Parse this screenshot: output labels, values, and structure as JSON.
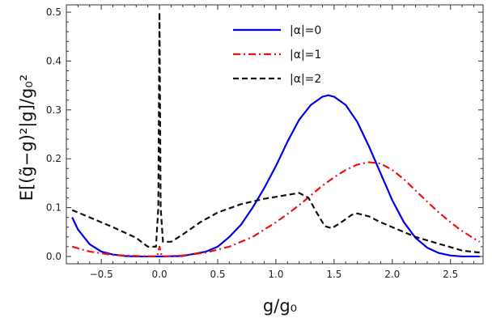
{
  "chart_data": {
    "type": "line",
    "xlabel": "g/g₀",
    "ylabel": "E[(g̃−g)²|g]/g₀²",
    "xlim": [
      -0.8,
      2.78
    ],
    "ylim": [
      -0.015,
      0.515
    ],
    "x_ticks": [
      -0.5,
      0.0,
      0.5,
      1.0,
      1.5,
      2.0,
      2.5
    ],
    "x_tick_labels": [
      "−0.5",
      "0.0",
      "0.5",
      "1.0",
      "1.5",
      "2.0",
      "2.5"
    ],
    "y_ticks": [
      0.0,
      0.1,
      0.2,
      0.3,
      0.4,
      0.5
    ],
    "y_tick_labels": [
      "0.0",
      "0.1",
      "0.2",
      "0.3",
      "0.4",
      "0.5"
    ],
    "grid": false,
    "legend_position": "top-center",
    "series": [
      {
        "name": "|α|=0",
        "color": "#0000ee",
        "dash": "solid",
        "points": [
          [
            -0.75,
            0.08
          ],
          [
            -0.7,
            0.055
          ],
          [
            -0.6,
            0.025
          ],
          [
            -0.5,
            0.01
          ],
          [
            -0.4,
            0.004
          ],
          [
            -0.3,
            0.001
          ],
          [
            -0.2,
            0.0
          ],
          [
            0.0,
            0.0
          ],
          [
            0.2,
            0.001
          ],
          [
            0.4,
            0.01
          ],
          [
            0.5,
            0.02
          ],
          [
            0.6,
            0.04
          ],
          [
            0.7,
            0.065
          ],
          [
            0.8,
            0.1
          ],
          [
            0.9,
            0.14
          ],
          [
            1.0,
            0.185
          ],
          [
            1.1,
            0.235
          ],
          [
            1.2,
            0.28
          ],
          [
            1.3,
            0.31
          ],
          [
            1.4,
            0.327
          ],
          [
            1.45,
            0.33
          ],
          [
            1.5,
            0.327
          ],
          [
            1.6,
            0.31
          ],
          [
            1.7,
            0.275
          ],
          [
            1.8,
            0.225
          ],
          [
            1.9,
            0.17
          ],
          [
            2.0,
            0.115
          ],
          [
            2.1,
            0.07
          ],
          [
            2.2,
            0.038
          ],
          [
            2.3,
            0.018
          ],
          [
            2.4,
            0.007
          ],
          [
            2.5,
            0.002
          ],
          [
            2.6,
            0.0
          ],
          [
            2.75,
            0.0
          ]
        ]
      },
      {
        "name": "|α|=1",
        "color": "#ee1111",
        "dash": "dashdot",
        "points": [
          [
            -0.75,
            0.02
          ],
          [
            -0.6,
            0.01
          ],
          [
            -0.4,
            0.003
          ],
          [
            -0.2,
            0.001
          ],
          [
            -0.02,
            0.0
          ],
          [
            0.0,
            0.02
          ],
          [
            0.02,
            0.0
          ],
          [
            0.2,
            0.002
          ],
          [
            0.4,
            0.008
          ],
          [
            0.6,
            0.02
          ],
          [
            0.8,
            0.04
          ],
          [
            0.9,
            0.055
          ],
          [
            1.0,
            0.07
          ],
          [
            1.1,
            0.087
          ],
          [
            1.2,
            0.105
          ],
          [
            1.3,
            0.125
          ],
          [
            1.4,
            0.145
          ],
          [
            1.5,
            0.162
          ],
          [
            1.6,
            0.177
          ],
          [
            1.7,
            0.188
          ],
          [
            1.8,
            0.193
          ],
          [
            1.9,
            0.19
          ],
          [
            2.0,
            0.177
          ],
          [
            2.1,
            0.158
          ],
          [
            2.2,
            0.135
          ],
          [
            2.3,
            0.112
          ],
          [
            2.4,
            0.09
          ],
          [
            2.5,
            0.07
          ],
          [
            2.6,
            0.052
          ],
          [
            2.7,
            0.037
          ],
          [
            2.75,
            0.03
          ]
        ]
      },
      {
        "name": "|α|=2",
        "color": "#111111",
        "dash": "dashed",
        "points": [
          [
            -0.75,
            0.095
          ],
          [
            -0.6,
            0.08
          ],
          [
            -0.4,
            0.06
          ],
          [
            -0.2,
            0.038
          ],
          [
            -0.1,
            0.02
          ],
          [
            -0.03,
            0.02
          ],
          [
            -0.01,
            0.1
          ],
          [
            0.0,
            0.5
          ],
          [
            0.01,
            0.1
          ],
          [
            0.03,
            0.03
          ],
          [
            0.1,
            0.03
          ],
          [
            0.2,
            0.045
          ],
          [
            0.35,
            0.07
          ],
          [
            0.5,
            0.09
          ],
          [
            0.7,
            0.107
          ],
          [
            0.9,
            0.118
          ],
          [
            1.05,
            0.124
          ],
          [
            1.2,
            0.13
          ],
          [
            1.28,
            0.12
          ],
          [
            1.35,
            0.09
          ],
          [
            1.42,
            0.062
          ],
          [
            1.48,
            0.058
          ],
          [
            1.55,
            0.068
          ],
          [
            1.65,
            0.085
          ],
          [
            1.7,
            0.088
          ],
          [
            1.8,
            0.082
          ],
          [
            1.9,
            0.07
          ],
          [
            2.0,
            0.06
          ],
          [
            2.1,
            0.05
          ],
          [
            2.2,
            0.04
          ],
          [
            2.3,
            0.033
          ],
          [
            2.4,
            0.026
          ],
          [
            2.5,
            0.019
          ],
          [
            2.6,
            0.012
          ],
          [
            2.75,
            0.008
          ]
        ]
      }
    ]
  }
}
